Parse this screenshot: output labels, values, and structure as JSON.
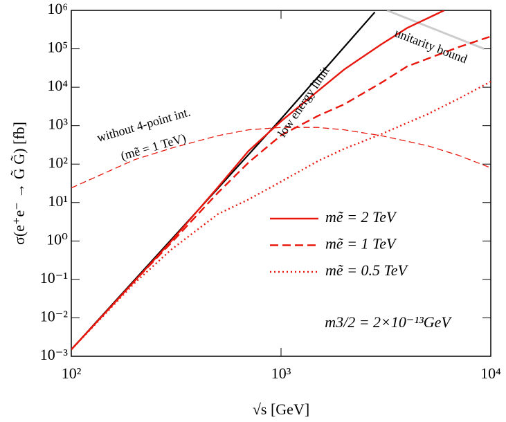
{
  "chart_data": {
    "type": "line",
    "xlabel": "√s [GeV]",
    "ylabel": "σ(e⁺e⁻ → G̃ G̃) [fb]",
    "log_x": true,
    "log_y": true,
    "xlim": [
      100,
      10000
    ],
    "ylim": [
      0.001,
      1000000
    ],
    "xticks": [
      {
        "value": 100,
        "label": "10²"
      },
      {
        "value": 1000,
        "label": "10³"
      },
      {
        "value": 10000,
        "label": "10⁴"
      }
    ],
    "yticks": [
      {
        "value": 0.001,
        "label": "10⁻³"
      },
      {
        "value": 0.01,
        "label": "10⁻²"
      },
      {
        "value": 0.1,
        "label": "10⁻¹"
      },
      {
        "value": 1,
        "label": "10⁰"
      },
      {
        "value": 10,
        "label": "10¹"
      },
      {
        "value": 100,
        "label": "10²"
      },
      {
        "value": 1000,
        "label": "10³"
      },
      {
        "value": 10000,
        "label": "10⁴"
      },
      {
        "value": 100000,
        "label": "10⁵"
      },
      {
        "value": 1000000,
        "label": "10⁶"
      }
    ],
    "legend": "center-right",
    "series": [
      {
        "name": "mẽ = 2 TeV",
        "color": "#e8160c",
        "dash": "solid",
        "x": [
          100,
          200,
          300,
          500,
          700,
          1000,
          1500,
          2000,
          3000,
          4000,
          6000
        ],
        "values": [
          0.0015,
          0.09,
          1.0,
          25,
          220,
          1300,
          8000,
          29000,
          130000,
          350000,
          1000000
        ]
      },
      {
        "name": "mẽ = 1 TeV",
        "color": "#e8160c",
        "dash": "dashed",
        "x": [
          100,
          200,
          300,
          500,
          700,
          1000,
          1500,
          2000,
          3000,
          4000,
          7000,
          10000
        ],
        "values": [
          0.0015,
          0.09,
          0.9,
          18,
          110,
          560,
          1800,
          3600,
          13000,
          35000,
          110000,
          210000
        ]
      },
      {
        "name": "mẽ = 0.5 TeV",
        "color": "#e8160c",
        "dash": "dotted",
        "x": [
          100,
          200,
          300,
          500,
          700,
          1000,
          1500,
          2000,
          3000,
          5000,
          7000,
          10000
        ],
        "values": [
          0.0015,
          0.08,
          0.6,
          5,
          12,
          35,
          120,
          250,
          600,
          2000,
          5000,
          14000
        ]
      }
    ],
    "curves": [
      {
        "label": "low energy limit",
        "color": "#000000",
        "dash": "solid",
        "x": [
          100,
          1000,
          2800
        ],
        "values": [
          0.0015,
          1500,
          900000
        ]
      },
      {
        "label": "unitarity bound",
        "color": "#cccccc",
        "dash": "solid",
        "x": [
          3200,
          9300
        ],
        "values": [
          1000000,
          100000
        ]
      },
      {
        "label": "without 4-point int.",
        "sublabel": "(mẽ = 1 TeV)",
        "color": "#e8160c",
        "dash": "thin-dashed",
        "x": [
          100,
          200,
          300,
          500,
          700,
          1000,
          1500,
          2000,
          3000,
          5000,
          7000,
          10000
        ],
        "values": [
          24,
          130,
          260,
          550,
          780,
          900,
          900,
          780,
          550,
          300,
          170,
          80
        ]
      }
    ],
    "annotation": "m3/2 = 2×10⁻¹³GeV"
  }
}
